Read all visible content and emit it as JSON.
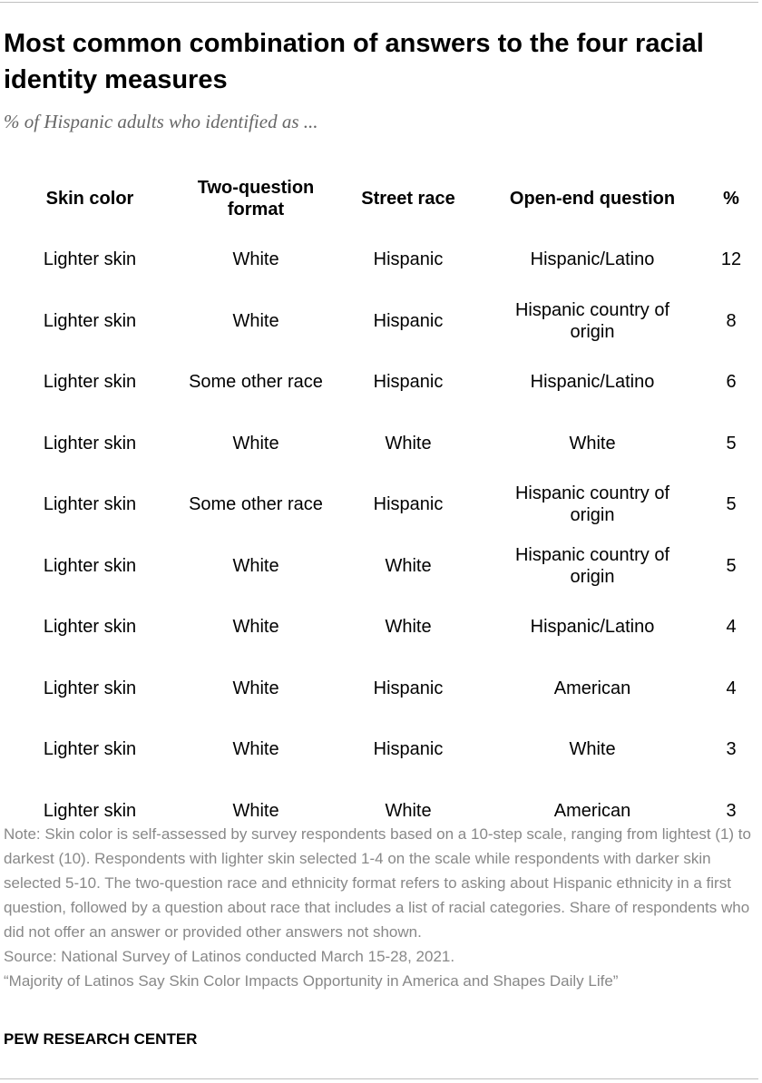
{
  "header": {
    "title": "Most common combination of answers to the four racial identity measures",
    "subtitle": "% of Hispanic adults who identified as ..."
  },
  "chart_data": {
    "type": "table",
    "columns": [
      "Skin color",
      "Two-question format",
      "Street race",
      "Open-end question",
      "%"
    ],
    "rows": [
      [
        "Lighter skin",
        "White",
        "Hispanic",
        "Hispanic/Latino",
        12
      ],
      [
        "Lighter skin",
        "White",
        "Hispanic",
        "Hispanic country of origin",
        8
      ],
      [
        "Lighter skin",
        "Some other race",
        "Hispanic",
        "Hispanic/Latino",
        6
      ],
      [
        "Lighter skin",
        "White",
        "White",
        "White",
        5
      ],
      [
        "Lighter skin",
        "Some other race",
        "Hispanic",
        "Hispanic country of origin",
        5
      ],
      [
        "Lighter skin",
        "White",
        "White",
        "Hispanic country of origin",
        5
      ],
      [
        "Lighter skin",
        "White",
        "White",
        "Hispanic/Latino",
        4
      ],
      [
        "Lighter skin",
        "White",
        "Hispanic",
        "American",
        4
      ],
      [
        "Lighter skin",
        "White",
        "Hispanic",
        "White",
        3
      ],
      [
        "Lighter skin",
        "White",
        "White",
        "American",
        3
      ]
    ]
  },
  "footer": {
    "note": "Note: Skin color is self-assessed by survey respondents based on a 10-step scale, ranging from lightest (1) to darkest (10). Respondents with lighter skin selected 1-4 on the scale while respondents with darker skin selected 5-10.  The two-question race and ethnicity format refers to asking about Hispanic ethnicity in a first question, followed by a question about race that includes a list of racial categories. Share of respondents who did not offer an answer or provided other answers not shown.",
    "source": "Source: National Survey of Latinos conducted March 15-28, 2021.",
    "report": "“Majority of Latinos Say Skin Color Impacts Opportunity in America and Shapes Daily Life”",
    "brand": "PEW RESEARCH CENTER"
  },
  "colors": {
    "title": "#000000",
    "subtitle": "#666666",
    "notes": "#888888",
    "rule": "#bfbfbf"
  }
}
